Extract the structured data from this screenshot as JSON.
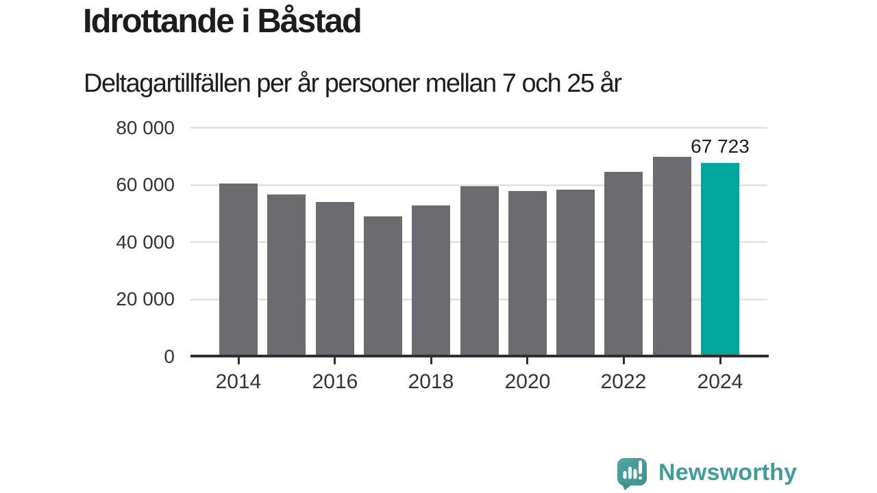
{
  "header": {
    "title": "Idrottande i Båstad",
    "subtitle": "Deltagartillfällen per år personer mellan 7 och 25 år"
  },
  "chart_data": {
    "type": "bar",
    "title": "Idrottande i Båstad",
    "subtitle": "Deltagartillfällen per år personer mellan 7 och 25 år",
    "xlabel": "",
    "ylabel": "",
    "categories": [
      "2014",
      "2015",
      "2016",
      "2017",
      "2018",
      "2019",
      "2020",
      "2021",
      "2022",
      "2023",
      "2024"
    ],
    "values": [
      60500,
      56600,
      54000,
      49100,
      52900,
      59600,
      57800,
      58400,
      64600,
      69800,
      67723
    ],
    "ylim": [
      0,
      80000
    ],
    "yticks": [
      0,
      20000,
      40000,
      60000,
      80000
    ],
    "ytick_labels": [
      "0",
      "20 000",
      "40 000",
      "60 000",
      "80 000"
    ],
    "xticks": [
      "2014",
      "2016",
      "2018",
      "2020",
      "2022",
      "2024"
    ],
    "grid": "horizontal-behind-bars",
    "legend": "none",
    "bar_color": "#6c6b70",
    "highlight_color": "#00a69b",
    "highlight_index": 10,
    "annotation": {
      "index": 10,
      "text": "67 723"
    }
  },
  "footer": {
    "brand": "Newsworthy",
    "logo_icon": "speech-bubble-bar-chart-exclamation",
    "logo_color": "#4aa09d",
    "logo_dark_color": "#3e9191"
  }
}
